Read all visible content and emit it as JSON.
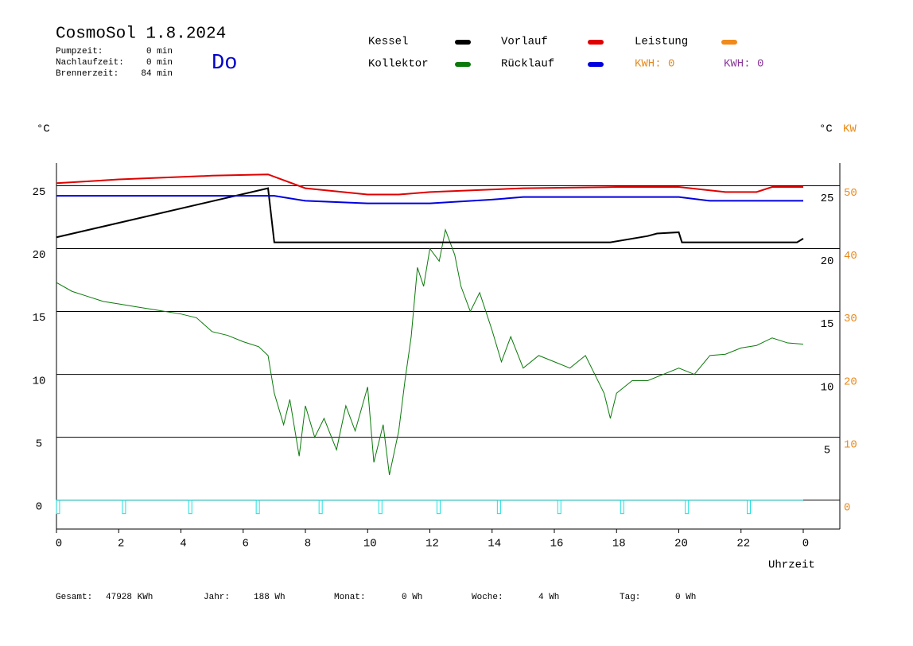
{
  "chart_data": {
    "type": "line",
    "title": "CosmoSol 1.8.2024",
    "day": "Do",
    "stats": [
      {
        "label": "Pumpzeit:",
        "value": "0 min"
      },
      {
        "label": "Nachlaufzeit:",
        "value": "0 min"
      },
      {
        "label": "Brennerzeit:",
        "value": "84 min"
      }
    ],
    "kwh_labels": [
      {
        "text": "KWH: 0",
        "color": "#e88a1a"
      },
      {
        "text": "KWH: 0",
        "color": "#8a3a9a"
      }
    ],
    "ylabel": "°C",
    "y2label": "°C",
    "y2label_unit": "KW",
    "xlabel": "Uhrzeit",
    "xlim": [
      0,
      24
    ],
    "xticks": [
      0,
      2,
      4,
      6,
      8,
      10,
      12,
      14,
      16,
      18,
      20,
      22,
      {
        "value": 24,
        "label": "0"
      }
    ],
    "ylim": [
      -2.3,
      26.8
    ],
    "yticks": [
      0,
      5,
      10,
      15,
      20,
      25
    ],
    "y2lim": [
      -4.6,
      53.6
    ],
    "y2ticks": [
      0,
      10,
      20,
      30,
      40,
      50
    ],
    "y2ticks_color": "#e88a1a",
    "yticks_right": [
      5,
      10,
      15,
      20,
      25
    ],
    "grid": true,
    "series": [
      {
        "name": "Kessel",
        "color": "#000000",
        "x": [
          0,
          6.8,
          7.0,
          17.8,
          19.0,
          19.3,
          20.0,
          20.1,
          23.8,
          24
        ],
        "values": [
          20.9,
          24.8,
          20.5,
          20.5,
          21.0,
          21.2,
          21.3,
          20.5,
          20.5,
          20.8
        ]
      },
      {
        "name": "Kollektor",
        "color": "#0a7a0a",
        "x": [
          0,
          0.5,
          1,
          1.5,
          2,
          2.5,
          3,
          3.5,
          4,
          4.5,
          5,
          5.5,
          6,
          6.5,
          6.8,
          7,
          7.3,
          7.5,
          7.8,
          8,
          8.3,
          8.6,
          9,
          9.3,
          9.6,
          10,
          10.2,
          10.5,
          10.7,
          11,
          11.2,
          11.4,
          11.6,
          11.8,
          12,
          12.3,
          12.5,
          12.8,
          13,
          13.3,
          13.6,
          14,
          14.3,
          14.6,
          15,
          15.5,
          16,
          16.5,
          17,
          17.3,
          17.6,
          17.8,
          18,
          18.5,
          19,
          19.5,
          20,
          20.5,
          21,
          21.5,
          22,
          22.5,
          23,
          23.5,
          24
        ],
        "values": [
          17.3,
          16.6,
          16.2,
          15.8,
          15.6,
          15.4,
          15.2,
          15.0,
          14.8,
          14.5,
          13.4,
          13.1,
          12.6,
          12.2,
          11.5,
          8.5,
          6.0,
          8.0,
          3.5,
          7.5,
          5.0,
          6.5,
          4.0,
          7.5,
          5.5,
          9.0,
          3.0,
          6.0,
          2.0,
          5.5,
          9.5,
          13.0,
          18.5,
          17.0,
          20.0,
          19.0,
          21.5,
          19.5,
          17.0,
          15.0,
          16.5,
          13.5,
          11.0,
          13.0,
          10.5,
          11.5,
          11.0,
          10.5,
          11.5,
          10.0,
          8.5,
          6.5,
          8.5,
          9.5,
          9.5,
          10.0,
          10.5,
          10.0,
          11.5,
          11.6,
          12.1,
          12.3,
          12.9,
          12.5,
          12.4
        ]
      },
      {
        "name": "Vorlauf",
        "color": "#e00000",
        "x": [
          0,
          2,
          5,
          6.8,
          8,
          10,
          11,
          12,
          15,
          18,
          20,
          21.5,
          22.5,
          23,
          24
        ],
        "values": [
          25.2,
          25.5,
          25.8,
          25.9,
          24.8,
          24.3,
          24.3,
          24.5,
          24.8,
          24.9,
          24.9,
          24.5,
          24.5,
          24.9,
          24.9
        ]
      },
      {
        "name": "Rücklauf",
        "color": "#0000e0",
        "x": [
          0,
          7,
          8,
          10,
          12,
          14,
          15,
          20,
          21,
          24
        ],
        "values": [
          24.2,
          24.2,
          23.8,
          23.6,
          23.6,
          23.9,
          24.1,
          24.1,
          23.8,
          23.8
        ]
      },
      {
        "name": "Leistung",
        "color": "#f08a1a",
        "x": [],
        "values": []
      }
    ],
    "pulses": {
      "color": "#20e0e0",
      "x": [
        0.05,
        2.17,
        4.3,
        6.47,
        8.49,
        10.41,
        12.28,
        14.22,
        16.16,
        18.18,
        20.26,
        22.25
      ]
    },
    "totals": [
      {
        "label": "Gesamt:",
        "value": "47928 KWh"
      },
      {
        "label": "Jahr:",
        "value": "188 Wh"
      },
      {
        "label": "Monat:",
        "value": "0 Wh"
      },
      {
        "label": "Woche:",
        "value": "4 Wh"
      },
      {
        "label": "Tag:",
        "value": "0 Wh"
      }
    ]
  }
}
